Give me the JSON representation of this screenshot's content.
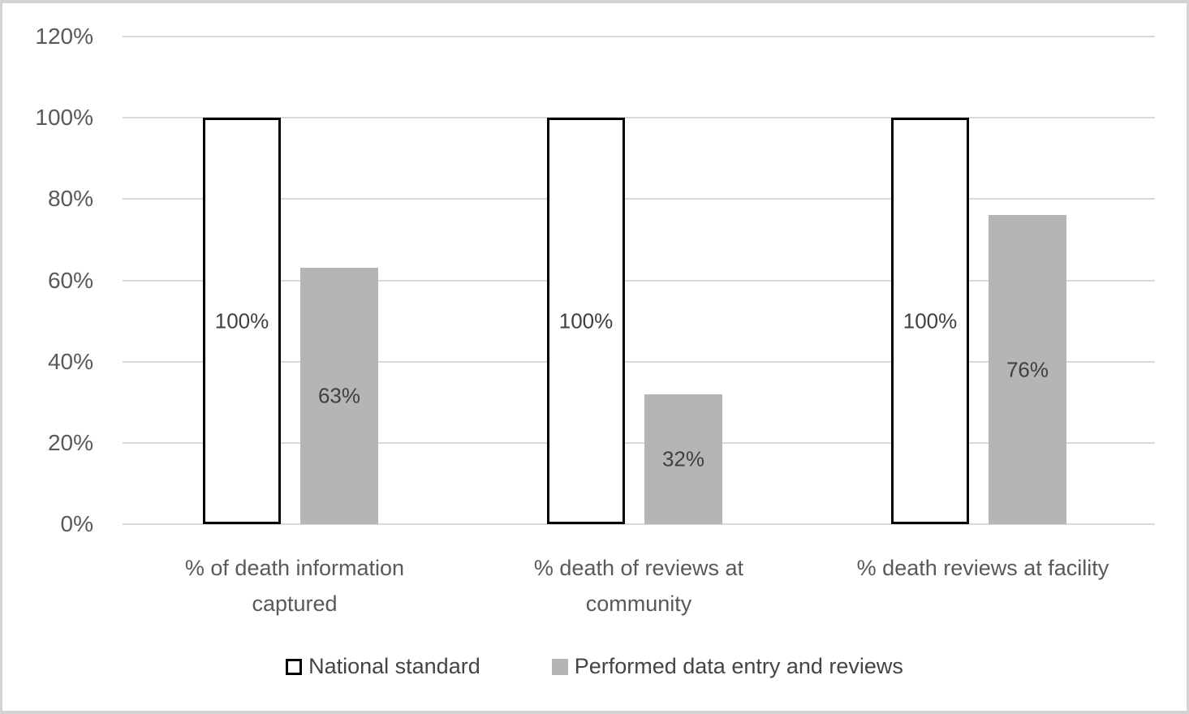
{
  "chart_data": {
    "type": "bar",
    "categories": [
      "% of death information captured",
      "% death of reviews at community",
      "% death reviews at facility"
    ],
    "series": [
      {
        "name": "National standard",
        "values": [
          100,
          100,
          100
        ],
        "fill": "#ffffff",
        "border": "#000000"
      },
      {
        "name": "Performed data entry and reviews",
        "values": [
          63,
          32,
          76
        ],
        "fill": "#b5b5b5",
        "border": null
      }
    ],
    "data_labels": [
      [
        "100%",
        "100%",
        "100%"
      ],
      [
        "63%",
        "32%",
        "76%"
      ]
    ],
    "title": "",
    "xlabel": "",
    "ylabel": "",
    "ylim": [
      0,
      120
    ],
    "yticks": [
      "0%",
      "20%",
      "40%",
      "60%",
      "80%",
      "100%",
      "120%"
    ],
    "grid": true,
    "legend_position": "bottom",
    "colors": {
      "gridline": "#d9d9d9",
      "axis_text": "#595959",
      "data_label_text": "#3f3f3f",
      "legend_text": "#444444",
      "frame_border": "#d3d3d3"
    }
  }
}
